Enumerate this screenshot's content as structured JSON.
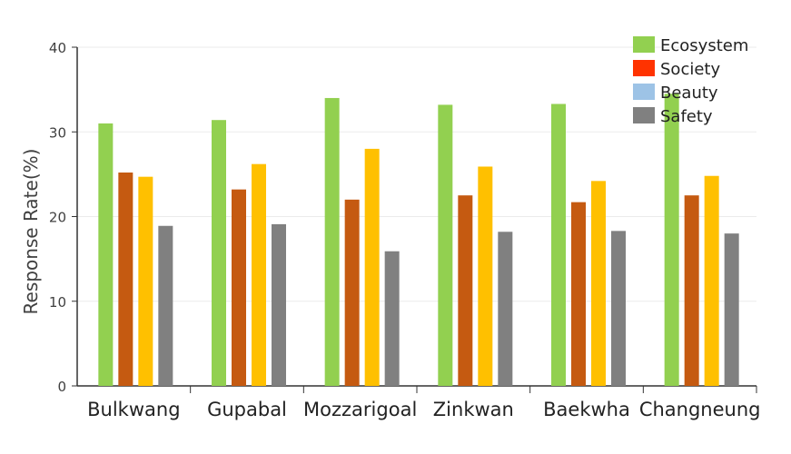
{
  "chart_data": {
    "type": "bar",
    "title": "",
    "xlabel": "",
    "ylabel": "Response Rate(%)",
    "ylim": [
      0,
      40
    ],
    "yticks": [
      "0",
      "10",
      "20",
      "30",
      "40"
    ],
    "grid": true,
    "legend_position": "top-right",
    "categories": [
      "Bulkwang",
      "Gupabal",
      "Mozzarigoal",
      "Zinkwan",
      "Baekwha",
      "Changneung"
    ],
    "legend": [
      {
        "label": "Ecosystem",
        "color": "#92d050"
      },
      {
        "label": "Society",
        "color": "#ff3300"
      },
      {
        "label": "Beauty",
        "color": "#9dc3e6"
      },
      {
        "label": "Safety",
        "color": "#808080"
      }
    ],
    "series": [
      {
        "color": "#92d050",
        "values": [
          31.0,
          31.4,
          34.0,
          33.2,
          33.3,
          34.5
        ]
      },
      {
        "color": "#c55a11",
        "values": [
          25.2,
          23.2,
          22.0,
          22.5,
          21.7,
          22.5
        ]
      },
      {
        "color": "#ffc000",
        "values": [
          24.7,
          26.2,
          28.0,
          25.9,
          24.2,
          24.8
        ]
      },
      {
        "color": "#808080",
        "values": [
          18.9,
          19.1,
          15.9,
          18.2,
          18.3,
          18.0
        ]
      }
    ]
  }
}
